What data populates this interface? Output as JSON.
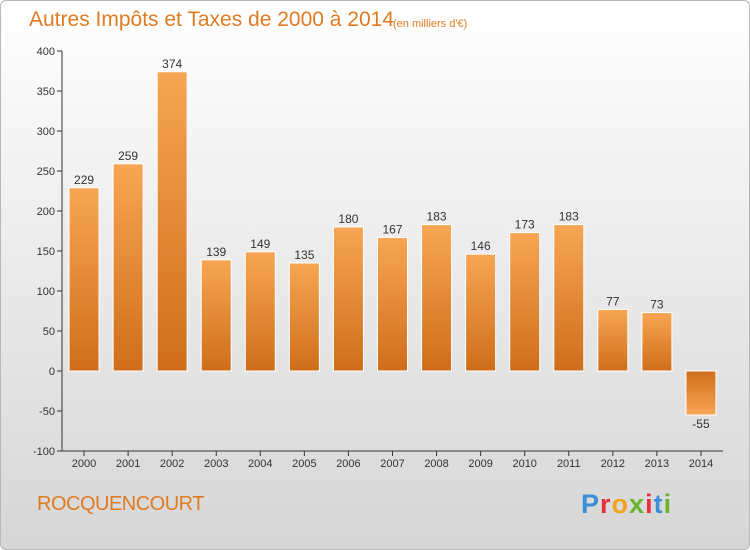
{
  "header": {
    "title": "Autres Impôts et Taxes de 2000 à 2014",
    "unit_note": "(en milliers d'€)"
  },
  "footer": {
    "commune": "ROCQUENCOURT",
    "brand": "Proxiti"
  },
  "colors": {
    "accent": "#e07b22",
    "bar_top": "#f7a654",
    "bar_bottom": "#cf6e1a",
    "brand_letters": [
      "#3a8fd6",
      "#e5303d",
      "#f0a31c",
      "#6ab42d",
      "#e5303d",
      "#3a8fd6",
      "#6ab42d"
    ]
  },
  "chart_data": {
    "type": "bar",
    "title": "Autres Impôts et Taxes de 2000 à 2014",
    "subtitle": "(en milliers d'€)",
    "categories": [
      "2000",
      "2001",
      "2002",
      "2003",
      "2004",
      "2005",
      "2006",
      "2007",
      "2008",
      "2009",
      "2010",
      "2011",
      "2012",
      "2013",
      "2014"
    ],
    "values": [
      229,
      259,
      374,
      139,
      149,
      135,
      180,
      167,
      183,
      146,
      173,
      183,
      77,
      73,
      -55
    ],
    "ylim": [
      -100,
      400
    ],
    "yticks": [
      -100,
      -50,
      0,
      50,
      100,
      150,
      200,
      250,
      300,
      350,
      400
    ],
    "grid": false,
    "legend": "none"
  }
}
